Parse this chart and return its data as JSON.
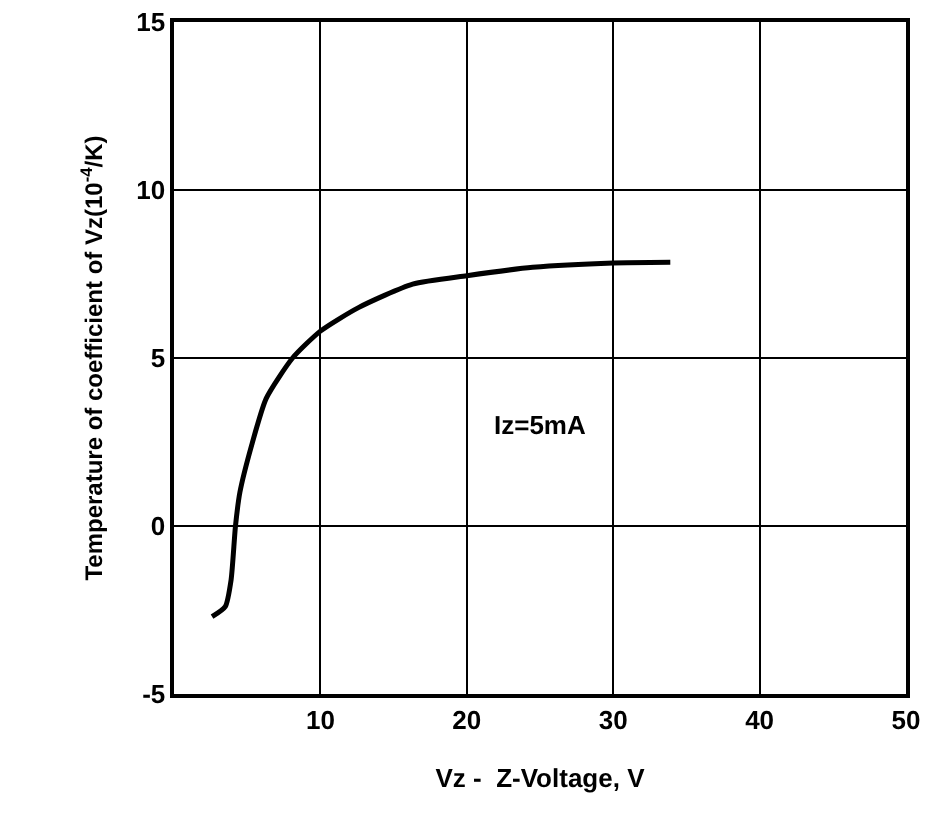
{
  "chart_data": {
    "type": "line",
    "xlabel": "Vz -  Z-Voltage, V",
    "ylabel": "Temperature of coefficient of Vz(10$^{-4}$/K)",
    "annotations": [
      "Iz=5mA"
    ],
    "x": [
      2.6,
      3.5,
      3.9,
      4.2,
      4.5,
      5.3,
      6.3,
      8.1,
      10,
      12.6,
      16.3,
      20,
      24.5,
      30,
      33.9
    ],
    "series": [
      {
        "color": "#000000",
        "values": [
          -2.7,
          -2.4,
          -1.6,
          0,
          1.0,
          2.4,
          3.8,
          5.0,
          5.8,
          6.5,
          7.2,
          7.45,
          7.7,
          7.83,
          7.85
        ]
      }
    ],
    "xlim": [
      0,
      50
    ],
    "xticks": [
      10,
      20,
      30,
      40,
      50
    ],
    "ylim": [
      -5,
      15
    ],
    "yticks": [
      -5,
      0,
      5,
      10,
      15
    ],
    "grid": true,
    "marker": "none",
    "line_style": "solid"
  }
}
